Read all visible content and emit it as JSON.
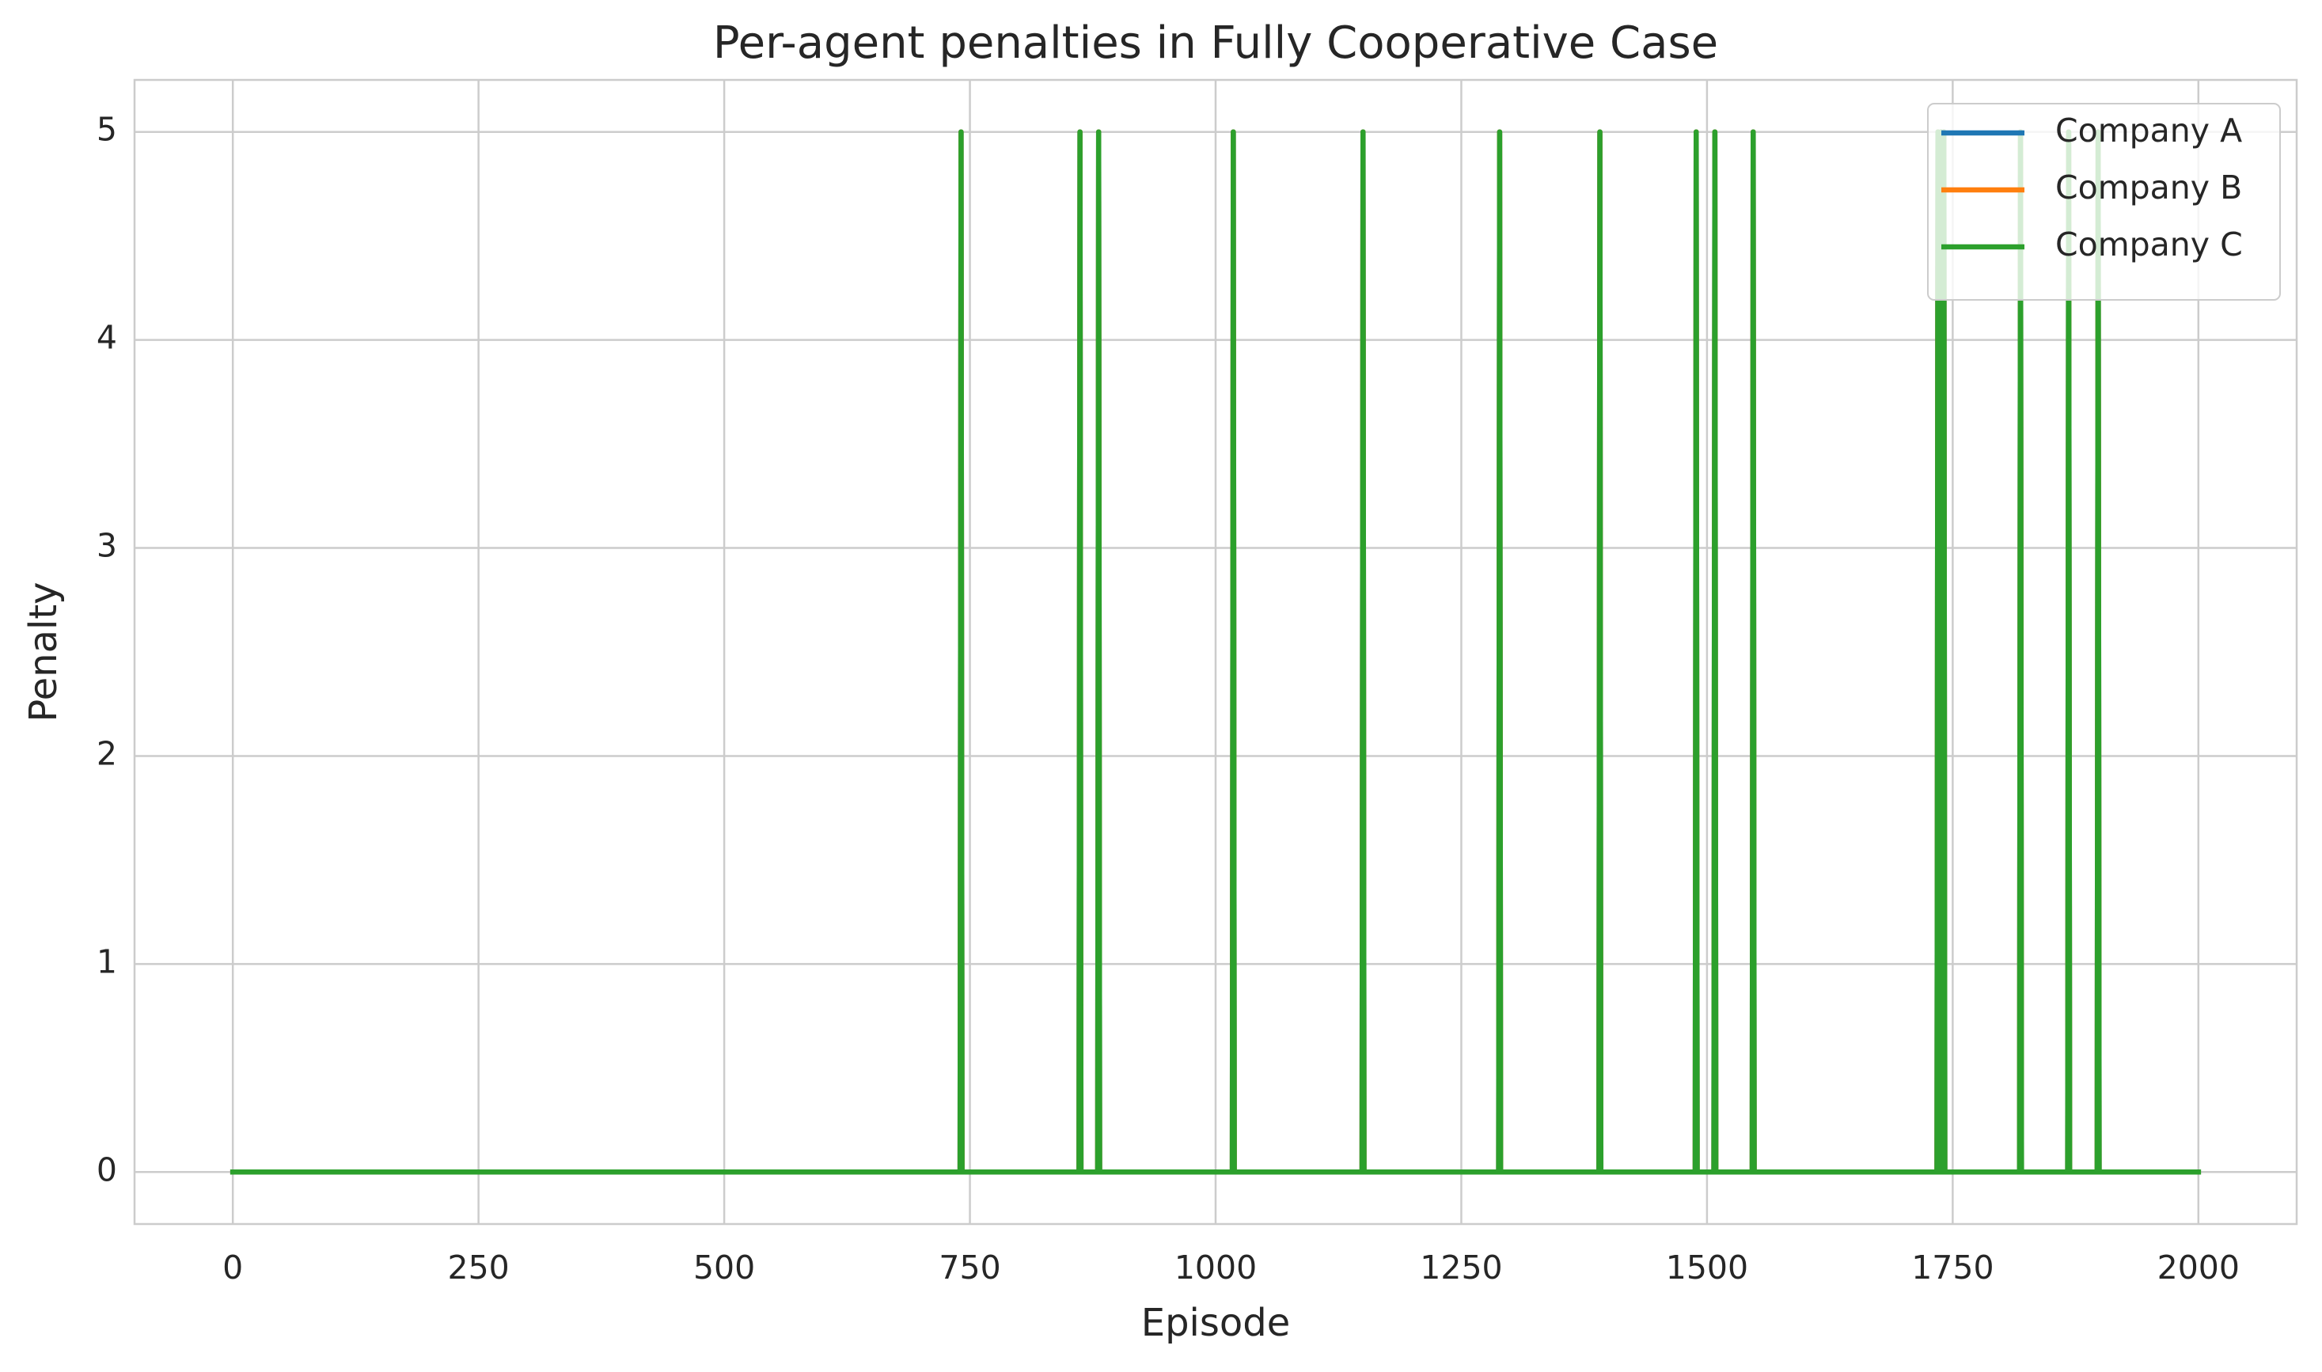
{
  "chart_data": {
    "type": "line",
    "title": "Per-agent penalties in Fully Cooperative Case",
    "x_label": "Episode",
    "y_label": "Penalty",
    "x": [
      0,
      740,
      741,
      742,
      861,
      862,
      863,
      880,
      881,
      882,
      1017,
      1018,
      1019,
      1149,
      1150,
      1151,
      1288,
      1289,
      1290,
      1390,
      1391,
      1392,
      1488,
      1489,
      1490,
      1507,
      1508,
      1509,
      1546,
      1547,
      1548,
      1734,
      1735,
      1736,
      1737,
      1738,
      1739,
      1740,
      1741,
      1742,
      1818,
      1819,
      1820,
      1867,
      1868,
      1869,
      1897,
      1898,
      1899,
      2000
    ],
    "series": [
      {
        "name": "Company A",
        "color": "#1f77b4",
        "values": [
          0,
          0,
          5,
          0,
          0,
          5,
          0,
          0,
          5,
          0,
          0,
          5,
          0,
          0,
          5,
          0,
          0,
          5,
          0,
          0,
          5,
          0,
          0,
          5,
          0,
          0,
          5,
          0,
          0,
          5,
          0,
          0,
          5,
          0,
          0,
          5,
          0,
          0,
          5,
          0,
          0,
          5,
          0,
          0,
          5,
          0,
          0,
          5,
          0,
          0
        ]
      },
      {
        "name": "Company B",
        "color": "#ff7f0e",
        "values": [
          0,
          0,
          5,
          0,
          0,
          5,
          0,
          0,
          5,
          0,
          0,
          5,
          0,
          0,
          5,
          0,
          0,
          5,
          0,
          0,
          5,
          0,
          0,
          5,
          0,
          0,
          5,
          0,
          0,
          5,
          0,
          0,
          5,
          0,
          0,
          5,
          0,
          0,
          5,
          0,
          0,
          5,
          0,
          0,
          5,
          0,
          0,
          5,
          0,
          0
        ]
      },
      {
        "name": "Company C",
        "color": "#2ca02c",
        "values": [
          0,
          0,
          5,
          0,
          0,
          5,
          0,
          0,
          5,
          0,
          0,
          5,
          0,
          0,
          5,
          0,
          0,
          5,
          0,
          0,
          5,
          0,
          0,
          5,
          0,
          0,
          5,
          0,
          0,
          5,
          0,
          0,
          5,
          0,
          0,
          5,
          0,
          0,
          5,
          0,
          0,
          5,
          0,
          0,
          5,
          0,
          0,
          5,
          0,
          0
        ]
      }
    ],
    "xlim": [
      -100,
      2100
    ],
    "ylim": [
      -0.25,
      5.25
    ],
    "xticks": [
      0,
      250,
      500,
      750,
      1000,
      1250,
      1500,
      1750,
      2000
    ],
    "yticks": [
      0,
      1,
      2,
      3,
      4,
      5
    ],
    "grid": true,
    "legend": "upper right"
  }
}
